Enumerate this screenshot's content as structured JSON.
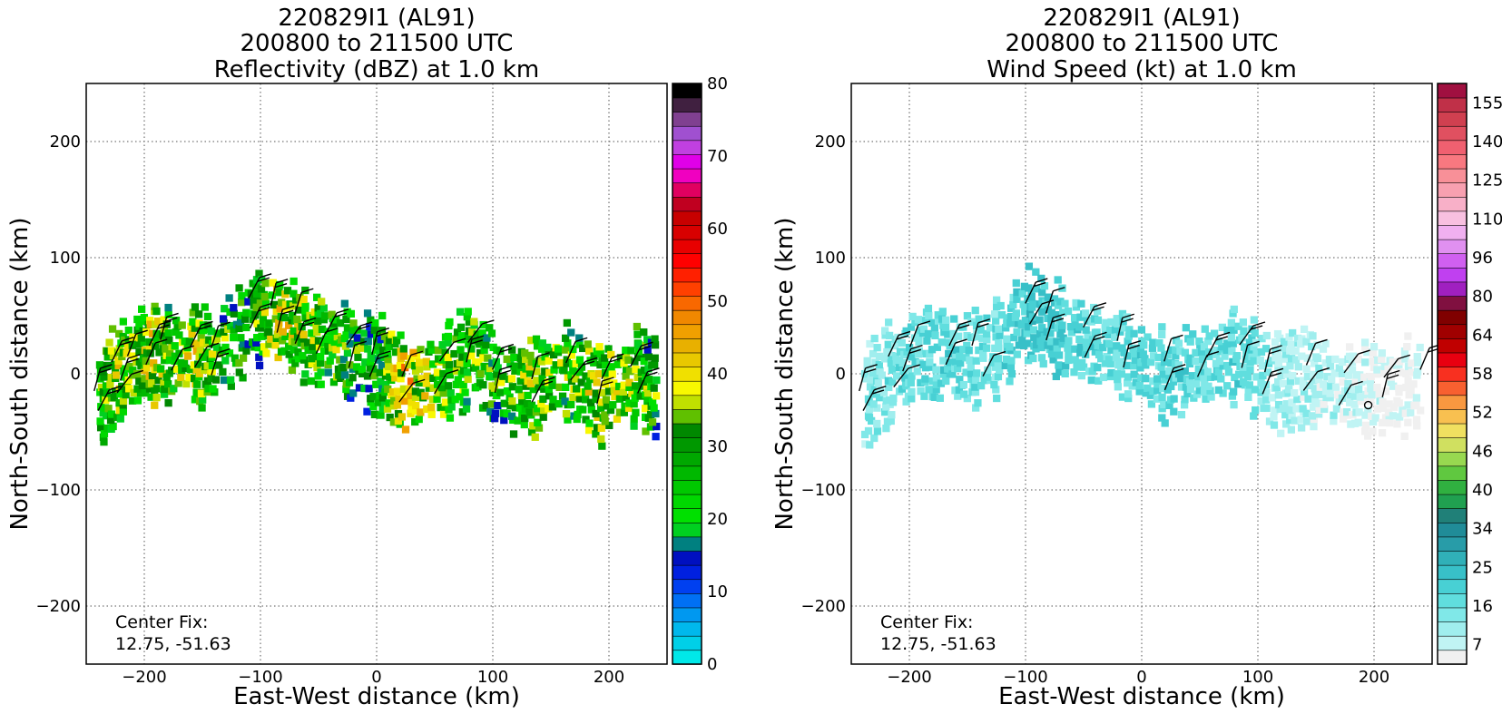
{
  "panels": [
    {
      "title_lines": [
        "220829I1 (AL91)",
        "200800 to 211500 UTC",
        "Reflectivity (dBZ) at 1.0 km"
      ],
      "xlabel": "East-West distance (km)",
      "ylabel": "North-South distance (km)",
      "center_fix_label": "Center Fix:",
      "center_fix_value": "12.75, -51.63",
      "colorbar_labels": [
        "0",
        "10",
        "20",
        "30",
        "40",
        "50",
        "60",
        "70",
        "80"
      ],
      "colorbar_colors": [
        "#00e8e8",
        "#00d0e8",
        "#00b8ec",
        "#0098f0",
        "#0070f4",
        "#0040f0",
        "#0020e0",
        "#0010c0",
        "#008080",
        "#00d020",
        "#00e000",
        "#00d800",
        "#00c800",
        "#00b800",
        "#00a800",
        "#009800",
        "#008800",
        "#60c000",
        "#c0e000",
        "#f8f800",
        "#f0e000",
        "#e8c800",
        "#e8b000",
        "#f0a000",
        "#f08800",
        "#f86800",
        "#ff4000",
        "#ff2000",
        "#ff0000",
        "#e80000",
        "#d80000",
        "#c80000",
        "#c00020",
        "#e00060",
        "#f000c0",
        "#e000e8",
        "#c040e0",
        "#a050d0",
        "#804090",
        "#402040",
        "#000000"
      ]
    },
    {
      "title_lines": [
        "220829I1 (AL91)",
        "200800 to 211500 UTC",
        "Wind Speed (kt) at 1.0 km"
      ],
      "xlabel": "East-West distance (km)",
      "ylabel": "North-South distance (km)",
      "center_fix_label": "Center Fix:",
      "center_fix_value": "12.75, -51.63",
      "colorbar_labels": [
        "7",
        "16",
        "25",
        "34",
        "40",
        "46",
        "52",
        "58",
        "64",
        "80",
        "96",
        "110",
        "125",
        "140",
        "155"
      ],
      "colorbar_colors": [
        "#f0f0f0",
        "#c0f4f4",
        "#a0eeee",
        "#80e8e8",
        "#60dede",
        "#48d0d4",
        "#38c0c8",
        "#30b0b8",
        "#289ca8",
        "#208c98",
        "#208078",
        "#20a050",
        "#30b040",
        "#60c840",
        "#98d850",
        "#d0e060",
        "#f0e060",
        "#f8c050",
        "#f89840",
        "#f86030",
        "#f83020",
        "#e80010",
        "#c00000",
        "#a00000",
        "#800000",
        "#801040",
        "#a020c0",
        "#c040f0",
        "#d060f0",
        "#e090f0",
        "#f0b0f0",
        "#f8c0e0",
        "#f8b0c8",
        "#f8a0b0",
        "#f89098",
        "#f87880",
        "#f06070",
        "#e05060",
        "#d04050",
        "#c03048",
        "#a01040"
      ]
    }
  ],
  "chart_data": [
    {
      "type": "heatmap",
      "title": "220829I1 (AL91) 200800 to 211500 UTC Reflectivity (dBZ) at 1.0 km",
      "xlabel": "East-West distance (km)",
      "ylabel": "North-South distance (km)",
      "xlim": [
        -250,
        250
      ],
      "ylim": [
        -250,
        250
      ],
      "xticks": [
        -200,
        -100,
        0,
        100,
        200
      ],
      "yticks": [
        -200,
        -100,
        0,
        100,
        200
      ],
      "grid": true,
      "colorbar": {
        "label": "Reflectivity (dBZ)",
        "range": [
          0,
          80
        ],
        "ticks": [
          0,
          10,
          20,
          30,
          40,
          50,
          60,
          70,
          80
        ]
      },
      "center_fix": [
        12.75,
        -51.63
      ],
      "echo_band": [
        {
          "x": -240,
          "y": -20,
          "v": 28
        },
        {
          "x": -230,
          "y": 0,
          "v": 35
        },
        {
          "x": -215,
          "y": 10,
          "v": 30
        },
        {
          "x": -200,
          "y": 20,
          "v": 38
        },
        {
          "x": -180,
          "y": 20,
          "v": 32
        },
        {
          "x": -160,
          "y": 18,
          "v": 36
        },
        {
          "x": -140,
          "y": 15,
          "v": 30
        },
        {
          "x": -110,
          "y": 55,
          "v": 25
        },
        {
          "x": -90,
          "y": 50,
          "v": 38
        },
        {
          "x": -70,
          "y": 40,
          "v": 34
        },
        {
          "x": -50,
          "y": 30,
          "v": 30
        },
        {
          "x": -30,
          "y": 20,
          "v": 28
        },
        {
          "x": 0,
          "y": 10,
          "v": 25
        },
        {
          "x": 20,
          "y": -10,
          "v": 42
        },
        {
          "x": 50,
          "y": 0,
          "v": 32
        },
        {
          "x": 80,
          "y": 20,
          "v": 30
        },
        {
          "x": 100,
          "y": -5,
          "v": 26
        },
        {
          "x": 130,
          "y": -10,
          "v": 34
        },
        {
          "x": 160,
          "y": 5,
          "v": 30
        },
        {
          "x": 190,
          "y": -15,
          "v": 36
        },
        {
          "x": 220,
          "y": 0,
          "v": 32
        },
        {
          "x": 240,
          "y": -10,
          "v": 28
        }
      ]
    },
    {
      "type": "heatmap",
      "title": "220829I1 (AL91) 200800 to 211500 UTC Wind Speed (kt) at 1.0 km",
      "xlabel": "East-West distance (km)",
      "ylabel": "North-South distance (km)",
      "xlim": [
        -250,
        250
      ],
      "ylim": [
        -250,
        250
      ],
      "xticks": [
        -200,
        -100,
        0,
        100,
        200
      ],
      "yticks": [
        -200,
        -100,
        0,
        100,
        200
      ],
      "grid": true,
      "colorbar": {
        "label": "Wind Speed (kt)",
        "range": [
          7,
          155
        ],
        "ticks": [
          7,
          16,
          25,
          34,
          40,
          46,
          52,
          58,
          64,
          80,
          96,
          110,
          125,
          140,
          155
        ]
      },
      "center_fix": [
        12.75,
        -51.63
      ],
      "wind_band": [
        {
          "x": -240,
          "y": -20,
          "v": 18
        },
        {
          "x": -220,
          "y": 5,
          "v": 20
        },
        {
          "x": -200,
          "y": 18,
          "v": 22
        },
        {
          "x": -170,
          "y": 20,
          "v": 24
        },
        {
          "x": -140,
          "y": 15,
          "v": 20
        },
        {
          "x": -100,
          "y": 55,
          "v": 28
        },
        {
          "x": -80,
          "y": 45,
          "v": 26
        },
        {
          "x": -50,
          "y": 30,
          "v": 24
        },
        {
          "x": -20,
          "y": 20,
          "v": 22
        },
        {
          "x": 20,
          "y": 0,
          "v": 24
        },
        {
          "x": 50,
          "y": 10,
          "v": 22
        },
        {
          "x": 80,
          "y": 20,
          "v": 24
        },
        {
          "x": 110,
          "y": -5,
          "v": 16
        },
        {
          "x": 140,
          "y": 0,
          "v": 14
        },
        {
          "x": 170,
          "y": -10,
          "v": 12
        },
        {
          "x": 210,
          "y": -10,
          "v": 8
        },
        {
          "x": 240,
          "y": -5,
          "v": 7
        }
      ]
    }
  ]
}
